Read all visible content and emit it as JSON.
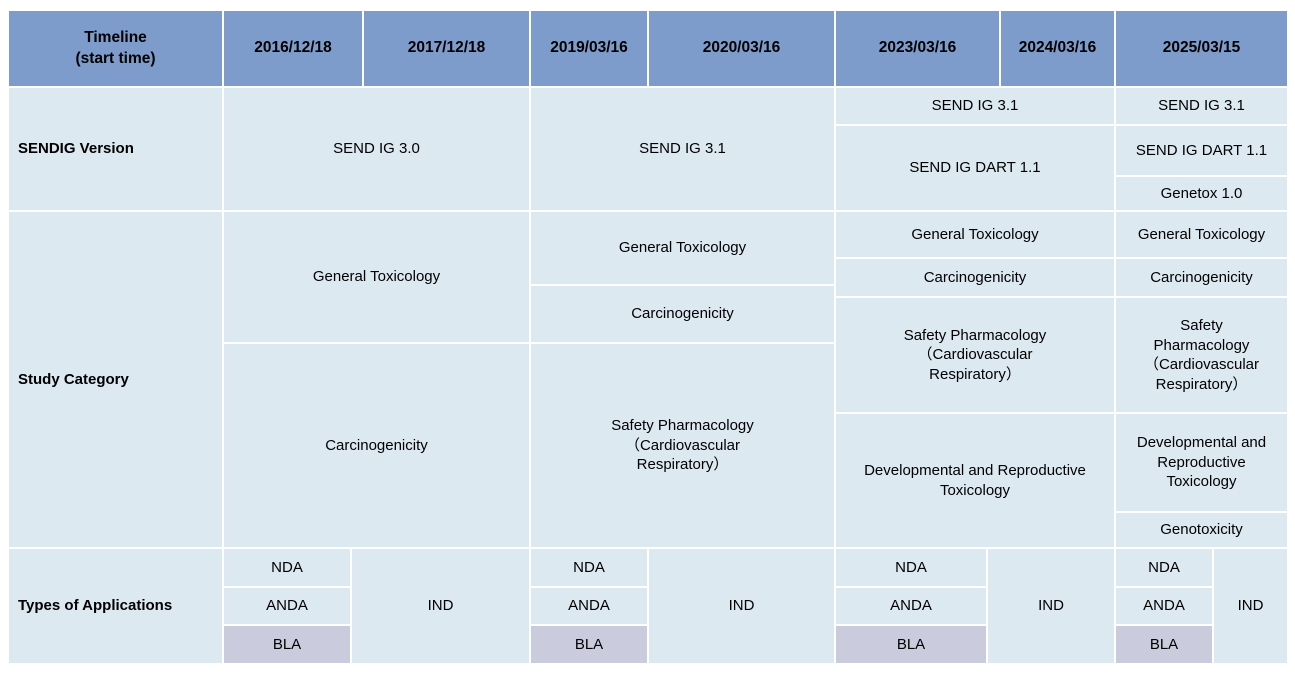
{
  "colors": {
    "header_blue": "#7D9CCB",
    "cell_light_blue": "#DCE9F1",
    "bla_lavender": "#CBCBDE",
    "gridline_white": "#FFFFFF",
    "text": "#000000"
  },
  "header": {
    "corner": "Timeline\n(start time)",
    "dates": [
      "2016/12/18",
      "2017/12/18",
      "2019/03/16",
      "2020/03/16",
      "2023/03/16",
      "2024/03/16",
      "2025/03/15"
    ]
  },
  "sendig_version": {
    "label": "SENDIG Version",
    "c2016_2017": "SEND IG 3.0",
    "c2019_2020": "SEND IG 3.1",
    "c2023_2024_top": "SEND IG 3.1",
    "c2023_2024_bottom": "SEND IG DART 1.1",
    "c2025_top": "SEND IG 3.1",
    "c2025_middle": "SEND IG DART 1.1",
    "c2025_bottom": "Genetox 1.0"
  },
  "study_category": {
    "label": "Study Category",
    "c2016_2017": [
      "General Toxicology",
      "Carcinogenicity"
    ],
    "c2019_2020": [
      "General Toxicology",
      "Carcinogenicity",
      "Safety Pharmacology\n（Cardiovascular\nRespiratory）"
    ],
    "c2023_2024": [
      "General Toxicology",
      "Carcinogenicity",
      "Safety Pharmacology\n（Cardiovascular\nRespiratory）",
      "Developmental and Reproductive\nToxicology"
    ],
    "c2025": [
      "General Toxicology",
      "Carcinogenicity",
      "Safety\nPharmacology\n（Cardiovascular\nRespiratory）",
      "Developmental and\nReproductive\nToxicology",
      "Genotoxicity"
    ]
  },
  "applications": {
    "label": "Types of Applications",
    "nda": "NDA",
    "anda": "ANDA",
    "bla": "BLA",
    "ind": "IND"
  }
}
